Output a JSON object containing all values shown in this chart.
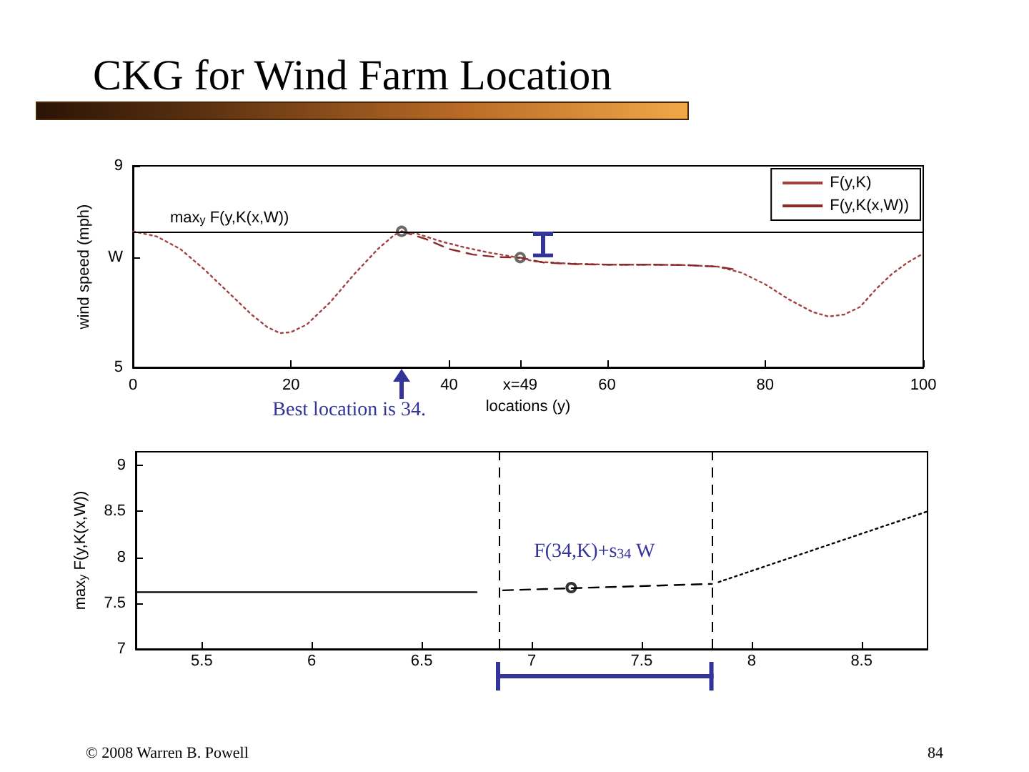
{
  "chart_data": [
    {
      "type": "line",
      "title": "CKG for Wind Farm Location",
      "xlabel": "locations (y)",
      "ylabel": "wind speed (mph)",
      "xlim": [
        0,
        100
      ],
      "xticks": [
        0,
        20,
        40,
        {
          "value": 49,
          "label": "x=49"
        },
        60,
        80,
        100
      ],
      "ylim": [
        5,
        9
      ],
      "yticks": [
        5,
        {
          "value": 7.18,
          "label": "W"
        },
        9
      ],
      "series": [
        {
          "name": "F(y,K)",
          "color": "#a04040",
          "line_style": "dotted",
          "x": [
            0,
            3,
            6,
            9,
            12,
            15,
            17,
            18.6,
            20,
            22,
            25,
            28,
            31,
            33,
            34,
            36,
            39,
            42,
            45,
            48,
            51,
            55,
            60,
            65,
            70,
            74,
            77,
            80,
            83,
            86,
            88,
            90,
            92,
            94,
            96,
            98,
            100
          ],
          "values": [
            7.7,
            7.6,
            7.35,
            6.95,
            6.5,
            6.05,
            5.8,
            5.68,
            5.7,
            5.85,
            6.3,
            6.85,
            7.35,
            7.62,
            7.7,
            7.65,
            7.5,
            7.38,
            7.28,
            7.2,
            7.1,
            7.06,
            7.04,
            7.04,
            7.03,
            7.0,
            6.88,
            6.65,
            6.35,
            6.1,
            6.01,
            6.05,
            6.2,
            6.55,
            6.85,
            7.08,
            7.26
          ]
        },
        {
          "name": "F(y,K(x,W))",
          "color": "#8b2a2a",
          "line_style": "dashed",
          "x": [
            34,
            37,
            40,
            43,
            46,
            49,
            52,
            56,
            60,
            65,
            70,
            74,
            76
          ],
          "values": [
            7.7,
            7.55,
            7.35,
            7.24,
            7.19,
            7.18,
            7.08,
            7.05,
            7.04,
            7.04,
            7.03,
            7.0,
            6.95
          ]
        },
        {
          "type": "scatter",
          "color": "#444444",
          "marker": "circle",
          "x": [
            34,
            49
          ],
          "values": [
            7.7,
            7.18
          ]
        }
      ],
      "ref_lines": [
        {
          "axis": "y",
          "value": 7.7,
          "label": "max$_{y}$ F(y,K(x,W))",
          "color": "#000000",
          "line_style": "solid"
        }
      ],
      "annotations": [
        "Best location is 34."
      ],
      "legend": "top right"
    },
    {
      "type": "line",
      "ylabel": "max$_{y}$ F(y,K(x,W))",
      "xlim": [
        5.2,
        8.8
      ],
      "xticks": [
        5.5,
        6,
        6.5,
        7,
        7.5,
        8,
        8.5
      ],
      "ylim": [
        7,
        9.15
      ],
      "yticks": [
        7,
        7.5,
        8,
        8.5,
        9
      ],
      "series": [
        {
          "color": "#000000",
          "line_style": "solid",
          "x": [
            5.2,
            6.75
          ],
          "values": [
            7.62,
            7.62
          ]
        },
        {
          "color": "#000000",
          "line_style": "dashed",
          "x": [
            6.87,
            7.82
          ],
          "values": [
            7.64,
            7.71
          ]
        },
        {
          "color": "#000000",
          "line_style": "dotted",
          "x": [
            7.85,
            8.8
          ],
          "values": [
            7.73,
            8.5
          ]
        },
        {
          "type": "scatter",
          "color": "#000000",
          "marker": "circle",
          "x": [
            7.18
          ],
          "values": [
            7.67
          ]
        }
      ],
      "ref_lines": [
        {
          "axis": "x",
          "value": 6.85,
          "color": "#000000",
          "line_style": "dashed"
        },
        {
          "axis": "x",
          "value": 7.82,
          "color": "#000000",
          "line_style": "dashed"
        }
      ],
      "annotations": [
        "F(34,K)+s$_{34}$ W",
        "© 2008 Warren B. Powell",
        "84"
      ]
    }
  ]
}
